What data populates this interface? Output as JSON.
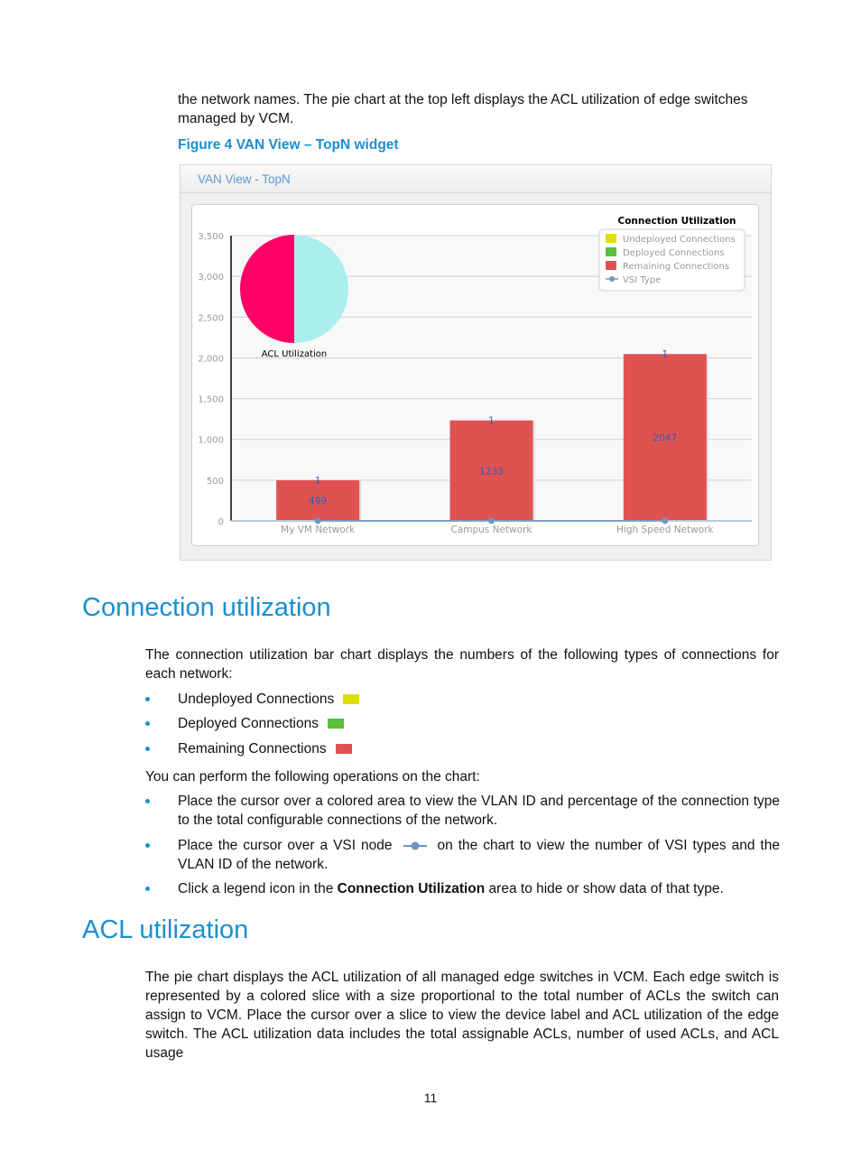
{
  "intro": {
    "line1": "the network names. The pie chart at the top left displays the ACL utilization of edge switches",
    "line2": "managed by VCM."
  },
  "figure_caption": "Figure 4 VAN View – TopN widget",
  "widget": {
    "title": "VAN View - TopN",
    "chart_data": {
      "type": "bar",
      "title": "Connection Utilization",
      "categories": [
        "My VM Network",
        "Campus Network",
        "High Speed Network"
      ],
      "ylim": [
        0,
        3500
      ],
      "yticks": [
        "0",
        "500",
        "1,000",
        "1,500",
        "2,000",
        "2,500",
        "3,000",
        "3,500"
      ],
      "ytick_values": [
        0,
        500,
        1000,
        1500,
        2000,
        2500,
        3000,
        3500
      ],
      "grid": true,
      "legend_position": "top-right",
      "series": [
        {
          "name": "Undeployed Connections",
          "color": "#dede00",
          "values": [
            0,
            0,
            0
          ]
        },
        {
          "name": "Deployed Connections",
          "color": "#5bbf3c",
          "values": [
            0,
            0,
            0
          ]
        },
        {
          "name": "Remaining Connections",
          "color": "#e05252",
          "values": [
            499,
            1233,
            2047
          ]
        },
        {
          "name": "VSI Type",
          "color": "#6f95c4",
          "values": [
            1,
            1,
            1
          ],
          "marker": "line-dot"
        }
      ],
      "bar_labels": [
        "499",
        "1233",
        "2047"
      ],
      "vsi_labels": [
        "1",
        "1",
        "1"
      ],
      "pie": {
        "label": "ACL Utilization",
        "slices": [
          {
            "value": 50,
            "color": "#ff0066"
          },
          {
            "value": 50,
            "color": "#aaeeee"
          }
        ]
      }
    }
  },
  "section1": {
    "heading": "Connection utilization",
    "para": "The connection utilization bar chart displays the numbers of the following types of connections for each network:",
    "types": [
      {
        "label": "Undeployed Connections",
        "color": "#dede00"
      },
      {
        "label": "Deployed Connections",
        "color": "#5bbf3c"
      },
      {
        "label": "Remaining Connections",
        "color": "#e05252"
      }
    ],
    "ops_intro": "You can perform the following operations on the chart:",
    "op1": "Place the cursor over a colored area to view the VLAN ID and percentage of the connection type to the total configurable connections of the network.",
    "op2a": "Place the cursor over a VSI node",
    "op2b": "on the chart to view the number of VSI types and the VLAN ID of the network.",
    "op3a": "Click a legend icon in the ",
    "op3b": "Connection Utilization",
    "op3c": " area to hide or show data of that type."
  },
  "section2": {
    "heading": "ACL utilization",
    "para": "The pie chart displays the ACL utilization of all managed edge switches in VCM. Each edge switch is represented by a colored slice with a size proportional to the total number of ACLs the switch can assign to VCM. Place the cursor over a slice to view the device label and ACL utilization of the edge switch. The ACL utilization data includes the total assignable ACLs, number of used ACLs, and ACL usage"
  },
  "page_number": "11"
}
